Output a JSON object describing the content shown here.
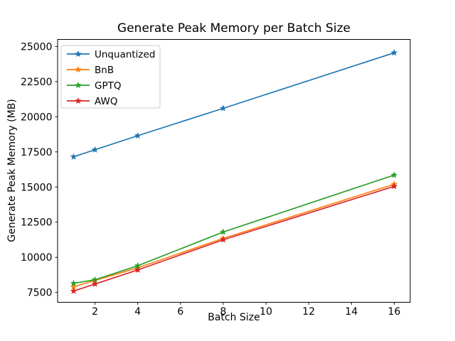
{
  "chart_data": {
    "type": "line",
    "title": "Generate Peak Memory per Batch Size",
    "xlabel": "Batch Size",
    "ylabel": "Generate Peak Memory (MB)",
    "x": [
      1,
      2,
      4,
      8,
      16
    ],
    "xticks": [
      2,
      4,
      6,
      8,
      10,
      12,
      14,
      16
    ],
    "yticks": [
      7500,
      10000,
      12500,
      15000,
      17500,
      20000,
      22500,
      25000
    ],
    "xlim": [
      0.25,
      16.75
    ],
    "ylim": [
      6800,
      25500
    ],
    "grid": false,
    "marker": "star",
    "legend_position": "upper left",
    "series": [
      {
        "name": "Unquantized",
        "color": "#1f77b4",
        "values": [
          17150,
          17650,
          18650,
          20600,
          24550
        ]
      },
      {
        "name": "BnB",
        "color": "#ff7f0e",
        "values": [
          7900,
          8350,
          9250,
          11350,
          15200
        ]
      },
      {
        "name": "GPTQ",
        "color": "#2ca02c",
        "values": [
          8150,
          8400,
          9400,
          11800,
          15850
        ]
      },
      {
        "name": "AWQ",
        "color": "#d62728",
        "values": [
          7600,
          8100,
          9100,
          11250,
          15050
        ]
      }
    ]
  }
}
